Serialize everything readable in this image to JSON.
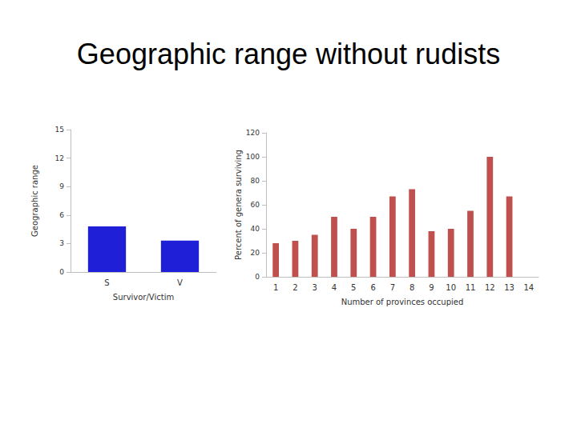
{
  "title": "Geographic range without rudists",
  "chart_data": [
    {
      "type": "bar",
      "categories": [
        "S",
        "V"
      ],
      "values": [
        4.8,
        3.3
      ],
      "color": "#1f1fd8",
      "x_label": "Survivor/Victim",
      "y_label": "Geographic range",
      "ylim": [
        0,
        15
      ],
      "yticks": [
        0,
        3,
        6,
        9,
        12,
        15
      ],
      "grid": false
    },
    {
      "type": "bar",
      "categories": [
        "1",
        "2",
        "3",
        "4",
        "5",
        "6",
        "7",
        "8",
        "9",
        "10",
        "11",
        "12",
        "13",
        "14"
      ],
      "values": [
        28,
        30,
        35,
        50,
        40,
        50,
        67,
        73,
        38,
        40,
        55,
        100,
        67,
        null
      ],
      "color": "#c0504d",
      "x_label": "Number of provinces occupied",
      "y_label": "Percent of genera surviving",
      "ylim": [
        0,
        120
      ],
      "yticks": [
        0,
        20,
        40,
        60,
        80,
        100,
        120
      ],
      "grid": false
    }
  ]
}
